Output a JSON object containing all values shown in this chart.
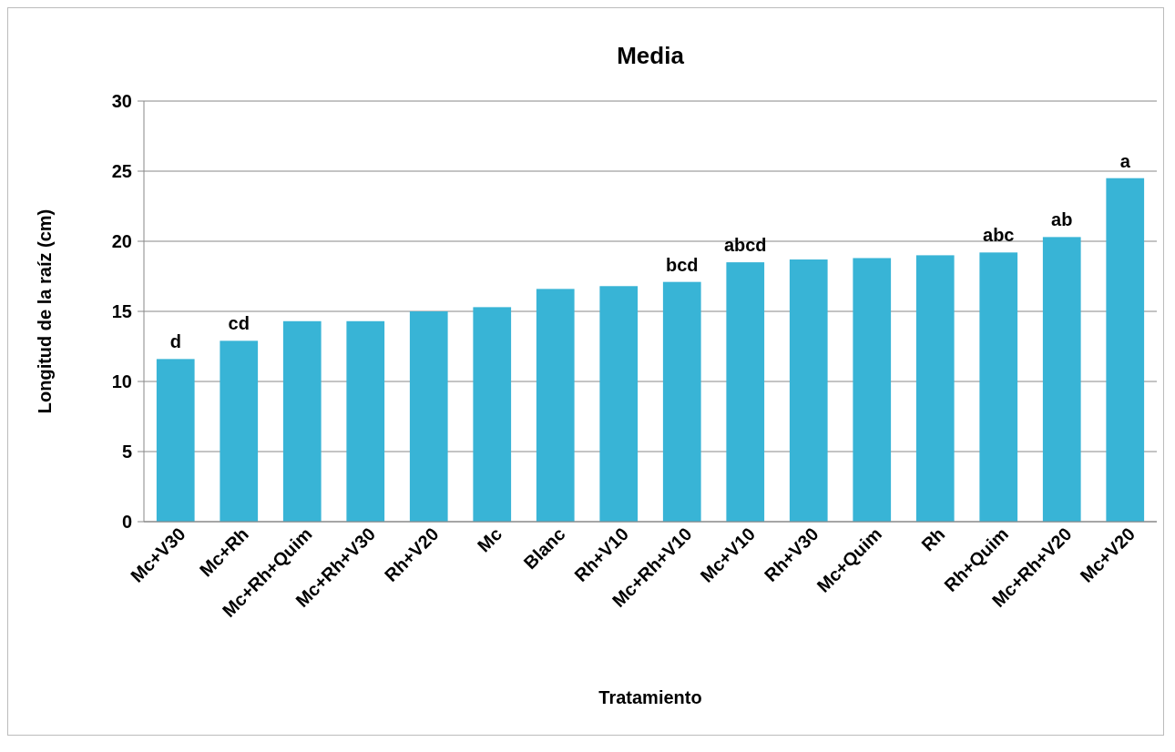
{
  "chart_data": {
    "type": "bar",
    "title": "Media",
    "xlabel": "Tratamiento",
    "ylabel": "Longitud de la raíz (cm)",
    "categories": [
      "Mc+V30",
      "Mc+Rh",
      "Mc+Rh+Quim",
      "Mc+Rh+V30",
      "Rh+V20",
      "Mc",
      "Blanc",
      "Rh+V10",
      "Mc+Rh+V10",
      "Mc+V10",
      "Rh+V30",
      "Mc+Quim",
      "Rh",
      "Rh+Quim",
      "Mc+Rh+V20",
      "Mc+V20"
    ],
    "values": [
      11.6,
      12.9,
      14.3,
      14.3,
      15.0,
      15.3,
      16.6,
      16.8,
      17.1,
      18.5,
      18.7,
      18.8,
      19.0,
      19.2,
      20.3,
      24.5
    ],
    "color": "#38b4d6",
    "ylim": [
      0,
      30
    ],
    "yticks": [
      0,
      5,
      10,
      15,
      20,
      25,
      30
    ],
    "grid": "y",
    "annotations": [
      {
        "text": "d",
        "x": "Mc+V30",
        "y": 11.6
      },
      {
        "text": "cd",
        "x": "Mc+Rh",
        "y": 12.9
      },
      {
        "text": "bcd",
        "x": "Mc+Rh+V10",
        "y": 17.1
      },
      {
        "text": "abcd",
        "x": "Mc+V10",
        "y": 18.5
      },
      {
        "text": "abc",
        "x": "Rh+Quim",
        "y": 19.2
      },
      {
        "text": "ab",
        "x": "Mc+Rh+V20",
        "y": 20.3
      },
      {
        "text": "a",
        "x": "Mc+V20",
        "y": 24.5
      }
    ]
  }
}
